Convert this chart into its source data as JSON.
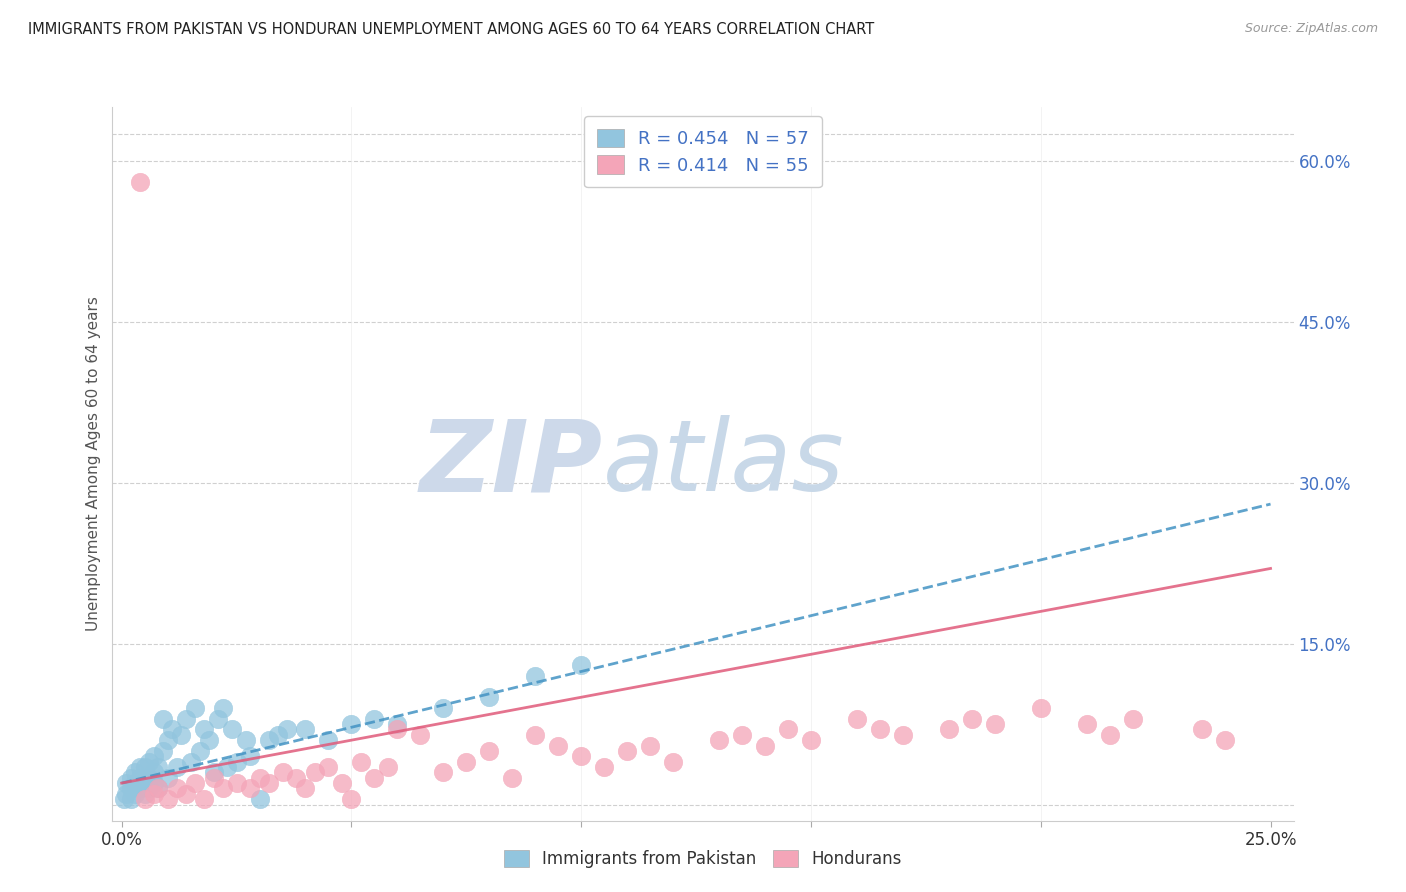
{
  "title": "IMMIGRANTS FROM PAKISTAN VS HONDURAN UNEMPLOYMENT AMONG AGES 60 TO 64 YEARS CORRELATION CHART",
  "source": "Source: ZipAtlas.com",
  "ylabel": "Unemployment Among Ages 60 to 64 years",
  "xlim": [
    -0.002,
    0.255
  ],
  "ylim": [
    -0.015,
    0.65
  ],
  "yticks_right": [
    0.0,
    0.15,
    0.3,
    0.45,
    0.6
  ],
  "yticklabels_right": [
    "",
    "15.0%",
    "30.0%",
    "45.0%",
    "60.0%"
  ],
  "legend1_label": "Immigrants from Pakistan",
  "legend2_label": "Hondurans",
  "r1": 0.454,
  "n1": 57,
  "r2": 0.414,
  "n2": 55,
  "blue_color": "#92c5de",
  "pink_color": "#f4a5b8",
  "blue_line_color": "#4393c3",
  "pink_line_color": "#e05a7a",
  "grid_color": "#d0d0d0",
  "right_tick_color": "#4472c4",
  "watermark_zip_color": "#cdd9ea",
  "watermark_atlas_color": "#c8d8e8",
  "blue_scatter": [
    [
      0.0005,
      0.005
    ],
    [
      0.001,
      0.01
    ],
    [
      0.001,
      0.02
    ],
    [
      0.002,
      0.005
    ],
    [
      0.002,
      0.015
    ],
    [
      0.002,
      0.025
    ],
    [
      0.003,
      0.01
    ],
    [
      0.003,
      0.02
    ],
    [
      0.003,
      0.03
    ],
    [
      0.004,
      0.015
    ],
    [
      0.004,
      0.025
    ],
    [
      0.004,
      0.035
    ],
    [
      0.005,
      0.01
    ],
    [
      0.005,
      0.02
    ],
    [
      0.005,
      0.035
    ],
    [
      0.006,
      0.015
    ],
    [
      0.006,
      0.025
    ],
    [
      0.006,
      0.04
    ],
    [
      0.007,
      0.02
    ],
    [
      0.007,
      0.03
    ],
    [
      0.007,
      0.045
    ],
    [
      0.008,
      0.015
    ],
    [
      0.008,
      0.035
    ],
    [
      0.009,
      0.05
    ],
    [
      0.009,
      0.08
    ],
    [
      0.01,
      0.025
    ],
    [
      0.01,
      0.06
    ],
    [
      0.011,
      0.07
    ],
    [
      0.012,
      0.035
    ],
    [
      0.013,
      0.065
    ],
    [
      0.014,
      0.08
    ],
    [
      0.015,
      0.04
    ],
    [
      0.016,
      0.09
    ],
    [
      0.017,
      0.05
    ],
    [
      0.018,
      0.07
    ],
    [
      0.019,
      0.06
    ],
    [
      0.02,
      0.03
    ],
    [
      0.021,
      0.08
    ],
    [
      0.022,
      0.09
    ],
    [
      0.023,
      0.035
    ],
    [
      0.024,
      0.07
    ],
    [
      0.025,
      0.04
    ],
    [
      0.027,
      0.06
    ],
    [
      0.028,
      0.045
    ],
    [
      0.03,
      0.005
    ],
    [
      0.032,
      0.06
    ],
    [
      0.034,
      0.065
    ],
    [
      0.036,
      0.07
    ],
    [
      0.04,
      0.07
    ],
    [
      0.045,
      0.06
    ],
    [
      0.05,
      0.075
    ],
    [
      0.055,
      0.08
    ],
    [
      0.06,
      0.075
    ],
    [
      0.07,
      0.09
    ],
    [
      0.08,
      0.1
    ],
    [
      0.09,
      0.12
    ],
    [
      0.1,
      0.13
    ]
  ],
  "pink_scatter": [
    [
      0.004,
      0.58
    ],
    [
      0.005,
      0.005
    ],
    [
      0.007,
      0.01
    ],
    [
      0.008,
      0.015
    ],
    [
      0.01,
      0.005
    ],
    [
      0.012,
      0.015
    ],
    [
      0.014,
      0.01
    ],
    [
      0.016,
      0.02
    ],
    [
      0.018,
      0.005
    ],
    [
      0.02,
      0.025
    ],
    [
      0.022,
      0.015
    ],
    [
      0.025,
      0.02
    ],
    [
      0.028,
      0.015
    ],
    [
      0.03,
      0.025
    ],
    [
      0.032,
      0.02
    ],
    [
      0.035,
      0.03
    ],
    [
      0.038,
      0.025
    ],
    [
      0.04,
      0.015
    ],
    [
      0.042,
      0.03
    ],
    [
      0.045,
      0.035
    ],
    [
      0.048,
      0.02
    ],
    [
      0.05,
      0.005
    ],
    [
      0.052,
      0.04
    ],
    [
      0.055,
      0.025
    ],
    [
      0.058,
      0.035
    ],
    [
      0.06,
      0.07
    ],
    [
      0.065,
      0.065
    ],
    [
      0.07,
      0.03
    ],
    [
      0.075,
      0.04
    ],
    [
      0.08,
      0.05
    ],
    [
      0.085,
      0.025
    ],
    [
      0.09,
      0.065
    ],
    [
      0.095,
      0.055
    ],
    [
      0.1,
      0.045
    ],
    [
      0.105,
      0.035
    ],
    [
      0.11,
      0.05
    ],
    [
      0.115,
      0.055
    ],
    [
      0.12,
      0.04
    ],
    [
      0.13,
      0.06
    ],
    [
      0.135,
      0.065
    ],
    [
      0.14,
      0.055
    ],
    [
      0.145,
      0.07
    ],
    [
      0.15,
      0.06
    ],
    [
      0.16,
      0.08
    ],
    [
      0.165,
      0.07
    ],
    [
      0.17,
      0.065
    ],
    [
      0.18,
      0.07
    ],
    [
      0.185,
      0.08
    ],
    [
      0.19,
      0.075
    ],
    [
      0.2,
      0.09
    ],
    [
      0.21,
      0.075
    ],
    [
      0.215,
      0.065
    ],
    [
      0.22,
      0.08
    ],
    [
      0.235,
      0.07
    ],
    [
      0.24,
      0.06
    ]
  ],
  "blue_line": [
    [
      0.0,
      0.02
    ],
    [
      0.25,
      0.28
    ]
  ],
  "pink_line": [
    [
      0.0,
      0.02
    ],
    [
      0.25,
      0.22
    ]
  ]
}
